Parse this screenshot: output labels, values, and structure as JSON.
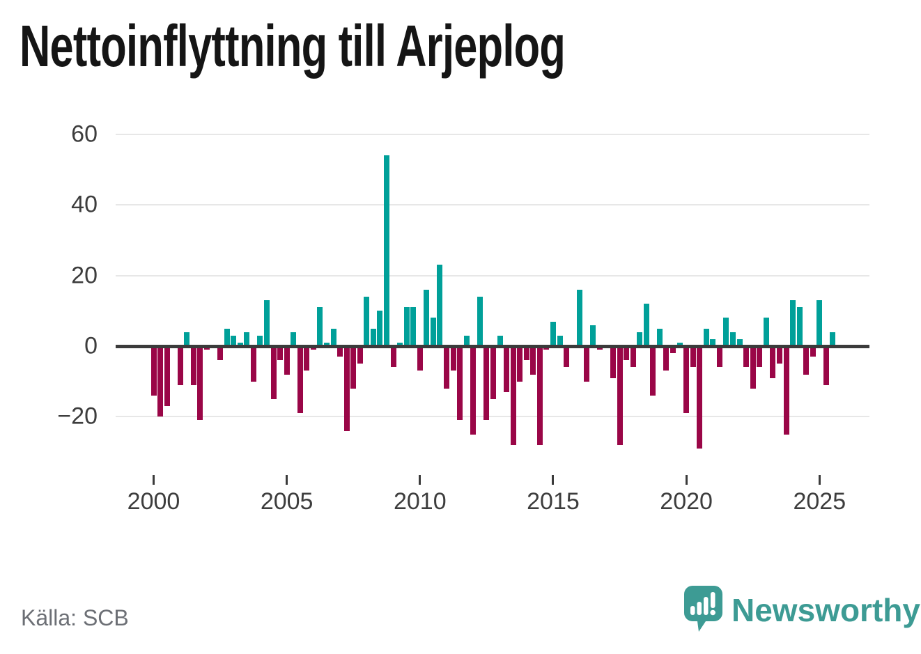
{
  "title": "Nettoinflyttning till Arjeplog",
  "source_note": "Källa: SCB",
  "branding": {
    "wordmark": "Newsworthy",
    "icon": "speech-bubble-with-bar-chart-and-exclamation"
  },
  "colors": {
    "background": "#ffffff",
    "positive_bar": "#00a099",
    "negative_bar": "#9a0647",
    "axis_line": "#3b3b3b",
    "gridline": "#e7e7e7",
    "axis_text": "#3d3d3d",
    "title_text": "#151515",
    "source_text": "#6c6f75",
    "brand_teal": "#3d9b94"
  },
  "chart_data": {
    "type": "bar",
    "title": "Nettoinflyttning till Arjeplog",
    "frequency": "quarterly",
    "start_period": "2000Q1",
    "end_period": "2025Q3",
    "values": [
      -14,
      -20,
      -17,
      0,
      -11,
      4,
      -11,
      -21,
      -1,
      0,
      -4,
      5,
      3,
      1,
      4,
      -10,
      3,
      13,
      -15,
      -4,
      -8,
      4,
      -19,
      -7,
      -1,
      11,
      1,
      5,
      -3,
      -24,
      -12,
      -5,
      14,
      5,
      10,
      54,
      -6,
      1,
      11,
      11,
      -7,
      16,
      8,
      23,
      -12,
      -7,
      -21,
      3,
      -25,
      14,
      -21,
      -15,
      3,
      -13,
      -28,
      -10,
      -4,
      -8,
      -28,
      -1,
      7,
      3,
      -6,
      0,
      16,
      -10,
      6,
      -1,
      0,
      -9,
      -28,
      -4,
      -6,
      4,
      12,
      -14,
      5,
      -7,
      -2,
      1,
      -19,
      -6,
      -29,
      5,
      2,
      -6,
      8,
      4,
      2,
      -6,
      -12,
      -6,
      8,
      -9,
      -5,
      -25,
      13,
      11,
      -8,
      -3,
      13,
      -11,
      4
    ],
    "y_axis": {
      "range": [
        -30,
        62
      ],
      "grid": true,
      "ticks": [
        {
          "value": 60,
          "label": "60"
        },
        {
          "value": 40,
          "label": "40"
        },
        {
          "value": 20,
          "label": "20"
        },
        {
          "value": 0,
          "label": "0"
        },
        {
          "value": -20,
          "label": "−20"
        }
      ]
    },
    "x_axis": {
      "ticks": [
        {
          "value": 2000,
          "label": "2000"
        },
        {
          "value": 2005,
          "label": "2005"
        },
        {
          "value": 2010,
          "label": "2010"
        },
        {
          "value": 2015,
          "label": "2015"
        },
        {
          "value": 2020,
          "label": "2020"
        },
        {
          "value": 2025,
          "label": "2025"
        }
      ]
    },
    "legend": "none",
    "positive_color": "#00a099",
    "negative_color": "#9a0647"
  }
}
